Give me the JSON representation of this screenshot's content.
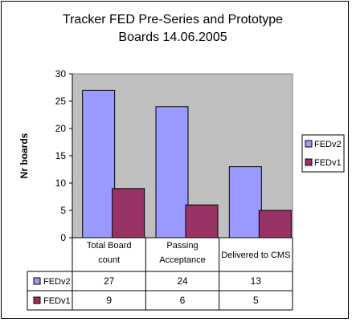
{
  "chart_data": {
    "type": "bar",
    "title_line1": "Tracker FED Pre-Series and Prototype",
    "title_line2": "Boards 14.06.2005",
    "ylabel": "Nr boards",
    "xlabel": "",
    "categories": [
      [
        "Total Board",
        "count"
      ],
      [
        "Passing",
        "Acceptance"
      ],
      [
        "Delivered to CMS"
      ]
    ],
    "series": [
      {
        "name": "FEDv2",
        "values": [
          27,
          24,
          13
        ],
        "color": "#9999ff"
      },
      {
        "name": "FEDv1",
        "values": [
          9,
          6,
          5
        ],
        "color": "#993366"
      }
    ],
    "ylim": [
      0,
      30
    ],
    "yticks": [
      0,
      5,
      10,
      15,
      20,
      25,
      30
    ],
    "plot_background": "#c0c0c0",
    "grid": false,
    "legend_position": "right",
    "data_table": true
  }
}
